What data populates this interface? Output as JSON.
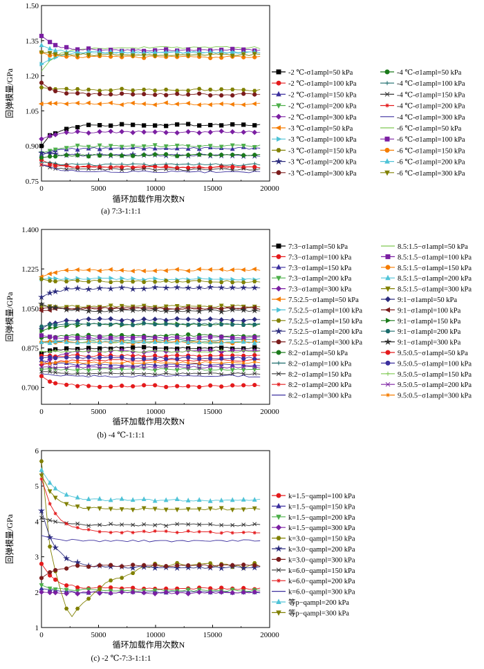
{
  "panels": [
    {
      "id": "a",
      "caption": "(a) 7:3-1:1:1",
      "xlabel": "循环加载作用次数N",
      "ylabel": "回弹模量/GPa",
      "xlim": [
        0,
        20000
      ],
      "ylim": [
        0.75,
        1.5
      ],
      "xticks": [
        "0",
        "5000",
        "10000",
        "15000",
        "20000"
      ],
      "yticks": [
        "0.75",
        "0.90",
        "1.05",
        "1.20",
        "1.35",
        "1.50"
      ],
      "legend": [
        {
          "label": "-2 ℃-σ1ampl=50 kPa",
          "color": "#000000",
          "marker": "square"
        },
        {
          "label": "-2 ℃-σ1ampl=100 kPa",
          "color": "#e41a1c",
          "marker": "circle"
        },
        {
          "label": "-2 ℃-σ1ampl=150 kPa",
          "color": "#3b2f9e",
          "marker": "triangle"
        },
        {
          "label": "-2 ℃-σ1ampl=200 kPa",
          "color": "#4daf4a",
          "marker": "triangle-down"
        },
        {
          "label": "-2 ℃-σ1ampl=300 kPa",
          "color": "#7b1fa2",
          "marker": "diamond"
        },
        {
          "label": "-3 ℃-σ1ampl=50 kPa",
          "color": "#f57c00",
          "marker": "triangle-left"
        },
        {
          "label": "-3 ℃-σ1ampl=100 kPa",
          "color": "#4fc3d7",
          "marker": "triangle-right"
        },
        {
          "label": "-3 ℃-σ1ampl=150 kPa",
          "color": "#808000",
          "marker": "hexagon"
        },
        {
          "label": "-3 ℃-σ1ampl=200 kPa",
          "color": "#2c2c7e",
          "marker": "star"
        },
        {
          "label": "-3 ℃-σ1ampl=300 kPa",
          "color": "#7b1c1c",
          "marker": "circle"
        },
        {
          "label": "-4 ℃-σ1ampl=50 kPa",
          "color": "#1b7a1b",
          "marker": "circle"
        },
        {
          "label": "-4 ℃-σ1ampl=100 kPa",
          "color": "#1a6b6b",
          "marker": "plus"
        },
        {
          "label": "-4 ℃-σ1ampl=150 kPa",
          "color": "#333333",
          "marker": "x"
        },
        {
          "label": "-4 ℃-σ1ampl=200 kPa",
          "color": "#e41a1c",
          "marker": "asterisk"
        },
        {
          "label": "-4 ℃-σ1ampl=300 kPa",
          "color": "#3b2f9e",
          "marker": "none"
        },
        {
          "label": "-6 ℃-σ1ampl=50 kPa",
          "color": "#7ec850",
          "marker": "none"
        },
        {
          "label": "-6 ℃-σ1ampl=100 kPa",
          "color": "#7b1fa2",
          "marker": "square"
        },
        {
          "label": "-6 ℃-σ1ampl=150 kPa",
          "color": "#f57c00",
          "marker": "circle"
        },
        {
          "label": "-6 ℃-σ1ampl=200 kPa",
          "color": "#4fc3d7",
          "marker": "triangle"
        },
        {
          "label": "-6 ℃-σ1ampl=300 kPa",
          "color": "#808000",
          "marker": "triangle-down"
        }
      ]
    },
    {
      "id": "b",
      "caption": "(b) -4 ℃-1:1:1",
      "xlabel": "循环加载作用次数N",
      "ylabel": "回弹模量/GPa",
      "xlim": [
        0,
        20000
      ],
      "ylim": [
        0.625,
        1.4
      ],
      "xticks": [
        "0",
        "5000",
        "10000",
        "15000",
        "20000"
      ],
      "yticks": [
        "0.700",
        "0.875",
        "1.050",
        "1.225",
        "1.400"
      ],
      "legend": [
        {
          "label": "7:3−σ1ampl=50 kPa",
          "color": "#000000",
          "marker": "square"
        },
        {
          "label": "7:3−σ1ampl=100 kPa",
          "color": "#e41a1c",
          "marker": "circle"
        },
        {
          "label": "7:3−σ1ampl=150 kPa",
          "color": "#3b2f9e",
          "marker": "triangle"
        },
        {
          "label": "7:3−σ1ampl=200 kPa",
          "color": "#4daf4a",
          "marker": "triangle-down"
        },
        {
          "label": "7:3−σ1ampl=300 kPa",
          "color": "#7b1fa2",
          "marker": "diamond"
        },
        {
          "label": "7.5:2.5−σ1ampl=50 kPa",
          "color": "#f57c00",
          "marker": "triangle-left"
        },
        {
          "label": "7.5:2.5−σ1ampl=100 kPa",
          "color": "#4fc3d7",
          "marker": "triangle-right"
        },
        {
          "label": "7.5:2.5−σ1ampl=150 kPa",
          "color": "#808000",
          "marker": "hexagon"
        },
        {
          "label": "7.5:2.5−σ1ampl=200 kPa",
          "color": "#2c2c7e",
          "marker": "star"
        },
        {
          "label": "7.5:2.5−σ1ampl=300 kPa",
          "color": "#7b1c1c",
          "marker": "circle"
        },
        {
          "label": "8:2−σ1ampl=50 kPa",
          "color": "#1b7a1b",
          "marker": "circle"
        },
        {
          "label": "8:2−σ1ampl=100 kPa",
          "color": "#1a6b6b",
          "marker": "plus"
        },
        {
          "label": "8:2−σ1ampl=150 kPa",
          "color": "#333333",
          "marker": "x"
        },
        {
          "label": "8:2−σ1ampl=200 kPa",
          "color": "#e41a1c",
          "marker": "asterisk"
        },
        {
          "label": "8:2−σ1ampl=300 kPa",
          "color": "#3b2f9e",
          "marker": "none"
        },
        {
          "label": "8.5:1.5−σ1ampl=50 kPa",
          "color": "#7ec850",
          "marker": "none"
        },
        {
          "label": "8.5:1.5−σ1ampl=100 kPa",
          "color": "#7b1fa2",
          "marker": "square"
        },
        {
          "label": "8.5:1.5−σ1ampl=150 kPa",
          "color": "#f57c00",
          "marker": "circle"
        },
        {
          "label": "8.5:1.5−σ1ampl=200 kPa",
          "color": "#4fc3d7",
          "marker": "triangle"
        },
        {
          "label": "8.5:1.5−σ1ampl=300 kPa",
          "color": "#808000",
          "marker": "triangle-down"
        },
        {
          "label": "9:1−σ1ampl=50 kPa",
          "color": "#2c2c7e",
          "marker": "diamond"
        },
        {
          "label": "9:1−σ1ampl=100 kPa",
          "color": "#7b1c1c",
          "marker": "triangle-left"
        },
        {
          "label": "9:1−σ1ampl=150 kPa",
          "color": "#1b7a1b",
          "marker": "triangle-right"
        },
        {
          "label": "9:1−σ1ampl=200 kPa",
          "color": "#1a6b6b",
          "marker": "hexagon"
        },
        {
          "label": "9:1−σ1ampl=300 kPa",
          "color": "#333333",
          "marker": "star"
        },
        {
          "label": "9.5:0.5−σ1ampl=50 kPa",
          "color": "#e41a1c",
          "marker": "circle"
        },
        {
          "label": "9.5:0.5−σ1ampl=100 kPa",
          "color": "#3b2f9e",
          "marker": "circle"
        },
        {
          "label": "9.5:0.5−σ1ampl=150 kPa",
          "color": "#7ec850",
          "marker": "plus"
        },
        {
          "label": "9.5:0.5−σ1ampl=200 kPa",
          "color": "#7b1fa2",
          "marker": "x"
        },
        {
          "label": "9.5:0.5−σ1ampl=300 kPa",
          "color": "#f57c00",
          "marker": "asterisk"
        }
      ]
    },
    {
      "id": "c",
      "caption": "(c) -2 ℃-7:3-1:1:1",
      "xlabel": "循环加载作用次数N",
      "ylabel": "回弹模量/GPa",
      "xlim": [
        0,
        20000
      ],
      "ylim": [
        1,
        6
      ],
      "xticks": [
        "0",
        "5000",
        "10000",
        "15000",
        "20000"
      ],
      "yticks": [
        "1",
        "2",
        "3",
        "4",
        "5",
        "6"
      ],
      "legend": [
        {
          "label": "k=1.5−qampl=100 kPa",
          "color": "#e41a1c",
          "marker": "circle"
        },
        {
          "label": "k=1.5−qampl=150 kPa",
          "color": "#3b2f9e",
          "marker": "triangle"
        },
        {
          "label": "k=1.5−qampl=200 kPa",
          "color": "#4daf4a",
          "marker": "triangle-down"
        },
        {
          "label": "k=1.5−qampl=300 kPa",
          "color": "#7b1fa2",
          "marker": "diamond"
        },
        {
          "label": "k=3.0−qampl=150 kPa",
          "color": "#808000",
          "marker": "hexagon"
        },
        {
          "label": "k=3.0−qampl=200 kPa",
          "color": "#2c2c7e",
          "marker": "star"
        },
        {
          "label": "k=3.0−qampl=300 kPa",
          "color": "#7b1c1c",
          "marker": "circle"
        },
        {
          "label": "k=6.0−qampl=150 kPa",
          "color": "#333333",
          "marker": "x"
        },
        {
          "label": "k=6.0−qampl=200 kPa",
          "color": "#e41a1c",
          "marker": "asterisk"
        },
        {
          "label": "k=6.0−qampl=300 kPa",
          "color": "#3b2f9e",
          "marker": "none"
        },
        {
          "label": "等p−qampl=200 kPa",
          "color": "#4fc3d7",
          "marker": "triangle"
        },
        {
          "label": "等p−qampl=300 kPa",
          "color": "#808000",
          "marker": "triangle-down"
        }
      ]
    }
  ],
  "chart_data": [
    {
      "type": "line",
      "title": "(a) 7:3-1:1:1",
      "xlabel": "循环加载作用次数N",
      "ylabel": "回弹模量/GPa",
      "xlim": [
        0,
        20000
      ],
      "ylim": [
        0.75,
        1.5
      ],
      "grid": false,
      "legend_position": "right",
      "series": [
        {
          "name": "-2 ℃-σ1ampl=50 kPa",
          "start": 0.9,
          "plateau": 0.99
        },
        {
          "name": "-2 ℃-σ1ampl=100 kPa",
          "start": 0.84,
          "plateau": 0.81
        },
        {
          "name": "-2 ℃-σ1ampl=150 kPa",
          "start": 0.86,
          "plateau": 0.89
        },
        {
          "name": "-2 ℃-σ1ampl=200 kPa",
          "start": 0.87,
          "plateau": 0.9
        },
        {
          "name": "-2 ℃-σ1ampl=300 kPa",
          "start": 0.93,
          "plateau": 0.96
        },
        {
          "name": "-3 ℃-σ1ampl=50 kPa",
          "start": 1.08,
          "plateau": 1.08
        },
        {
          "name": "-3 ℃-σ1ampl=100 kPa",
          "start": 1.25,
          "plateau": 1.3
        },
        {
          "name": "-3 ℃-σ1ampl=150 kPa",
          "start": 1.15,
          "plateau": 1.14
        },
        {
          "name": "-3 ℃-σ1ampl=200 kPa",
          "start": 0.87,
          "plateau": 0.86
        },
        {
          "name": "-3 ℃-σ1ampl=300 kPa",
          "start": 1.17,
          "plateau": 1.12
        },
        {
          "name": "-4 ℃-σ1ampl=50 kPa",
          "start": 0.85,
          "plateau": 0.86
        },
        {
          "name": "-4 ℃-σ1ampl=100 kPa",
          "start": 0.83,
          "plateau": 0.82
        },
        {
          "name": "-4 ℃-σ1ampl=150 kPa",
          "start": 0.82,
          "plateau": 0.8
        },
        {
          "name": "-4 ℃-σ1ampl=200 kPa",
          "start": 0.82,
          "plateau": 0.81
        },
        {
          "name": "-4 ℃-σ1ampl=300 kPa",
          "start": 0.82,
          "plateau": 0.79
        },
        {
          "name": "-6 ℃-σ1ampl=50 kPa",
          "start": 1.22,
          "plateau": 1.32
        },
        {
          "name": "-6 ℃-σ1ampl=100 kPa",
          "start": 1.37,
          "plateau": 1.31
        },
        {
          "name": "-6 ℃-σ1ampl=150 kPa",
          "start": 1.3,
          "plateau": 1.28
        },
        {
          "name": "-6 ℃-σ1ampl=200 kPa",
          "start": 1.33,
          "plateau": 1.3
        },
        {
          "name": "-6 ℃-σ1ampl=300 kPa",
          "start": 1.3,
          "plateau": 1.29
        }
      ]
    },
    {
      "type": "line",
      "title": "(b) -4 ℃-1:1:1",
      "xlabel": "循环加载作用次数N",
      "ylabel": "回弹模量/GPa",
      "xlim": [
        0,
        20000
      ],
      "ylim": [
        0.625,
        1.4
      ],
      "grid": false,
      "legend_position": "right",
      "series": [
        {
          "name": "7:3−σ1ampl=50 kPa",
          "start": 0.85,
          "plateau": 0.875
        },
        {
          "name": "7:3−σ1ampl=100 kPa",
          "start": 0.75,
          "plateau": 0.706
        },
        {
          "name": "7:3−σ1ampl=150 kPa",
          "start": 0.82,
          "plateau": 0.8
        },
        {
          "name": "7:3−σ1ampl=200 kPa",
          "start": 0.78,
          "plateau": 0.78
        },
        {
          "name": "7:3−σ1ampl=300 kPa",
          "start": 0.8,
          "plateau": 0.86
        },
        {
          "name": "7.5:2.5−σ1ampl=50 kPa",
          "start": 1.19,
          "plateau": 1.22
        },
        {
          "name": "7.5:2.5−σ1ampl=100 kPa",
          "start": 1.18,
          "plateau": 1.18
        },
        {
          "name": "7.5:2.5−σ1ampl=150 kPa",
          "start": 1.18,
          "plateau": 1.17
        },
        {
          "name": "7.5:2.5−σ1ampl=200 kPa",
          "start": 1.1,
          "plateau": 1.14
        },
        {
          "name": "7.5:2.5−σ1ampl=300 kPa",
          "start": 1.05,
          "plateau": 1.05
        },
        {
          "name": "8:2−σ1ampl=50 kPa",
          "start": 0.92,
          "plateau": 0.93
        },
        {
          "name": "8:2−σ1ampl=100 kPa",
          "start": 0.9,
          "plateau": 0.91
        },
        {
          "name": "8:2−σ1ampl=150 kPa",
          "start": 0.77,
          "plateau": 0.76
        },
        {
          "name": "8:2−σ1ampl=200 kPa",
          "start": 0.8,
          "plateau": 0.82
        },
        {
          "name": "8:2−σ1ampl=300 kPa",
          "start": 0.76,
          "plateau": 0.75
        },
        {
          "name": "8.5:1.5−σ1ampl=50 kPa",
          "start": 0.9,
          "plateau": 0.9
        },
        {
          "name": "8.5:1.5−σ1ampl=100 kPa",
          "start": 0.93,
          "plateau": 0.92
        },
        {
          "name": "8.5:1.5−σ1ampl=150 kPa",
          "start": 0.9,
          "plateau": 0.9
        },
        {
          "name": "8.5:1.5−σ1ampl=200 kPa",
          "start": 0.9,
          "plateau": 0.9
        },
        {
          "name": "8.5:1.5−σ1ampl=300 kPa",
          "start": 1.06,
          "plateau": 1.06
        },
        {
          "name": "9:1−σ1ampl=50 kPa",
          "start": 0.96,
          "plateau": 1.0
        },
        {
          "name": "9:1−σ1ampl=100 kPa",
          "start": 1.04,
          "plateau": 1.05
        },
        {
          "name": "9:1−σ1ampl=150 kPa",
          "start": 0.95,
          "plateau": 0.98
        },
        {
          "name": "9:1−σ1ampl=200 kPa",
          "start": 0.97,
          "plateau": 0.98
        },
        {
          "name": "9:1−σ1ampl=300 kPa",
          "start": 1.07,
          "plateau": 1.04
        },
        {
          "name": "9.5:0.5−σ1ampl=50 kPa",
          "start": 0.84,
          "plateau": 0.84
        },
        {
          "name": "9.5:0.5−σ1ampl=100 kPa",
          "start": 0.83,
          "plateau": 0.83
        },
        {
          "name": "9.5:0.5−σ1ampl=150 kPa",
          "start": 0.86,
          "plateau": 0.86
        },
        {
          "name": "9.5:0.5−σ1ampl=200 kPa",
          "start": 0.79,
          "plateau": 0.79
        },
        {
          "name": "9.5:0.5−σ1ampl=300 kPa",
          "start": 0.81,
          "plateau": 0.81
        }
      ]
    },
    {
      "type": "line",
      "title": "(c) -2 ℃-7:3-1:1:1",
      "xlabel": "循环加载作用次数N",
      "ylabel": "回弹模量/GPa",
      "xlim": [
        0,
        20000
      ],
      "ylim": [
        1,
        6
      ],
      "grid": false,
      "legend_position": "right",
      "series": [
        {
          "name": "k=1.5−qampl=100 kPa",
          "start": 2.8,
          "plateau": 2.1
        },
        {
          "name": "k=1.5−qampl=150 kPa",
          "start": 2.1,
          "plateau": 2.0
        },
        {
          "name": "k=1.5−qampl=200 kPa",
          "start": 2.2,
          "plateau": 2.05
        },
        {
          "name": "k=1.5−qampl=300 kPa",
          "start": 2.0,
          "plateau": 1.98
        },
        {
          "name": "k=3.0−qampl=150 kPa",
          "start": 5.7,
          "plateau": 2.75,
          "dip": 1.25,
          "dip_x": 2500
        },
        {
          "name": "k=3.0−qampl=200 kPa",
          "start": 4.3,
          "plateau": 2.7
        },
        {
          "name": "k=3.0−qampl=300 kPa",
          "start": 2.4,
          "plateau": 2.75
        },
        {
          "name": "k=6.0−qampl=150 kPa",
          "start": 4.1,
          "plateau": 3.9
        },
        {
          "name": "k=6.0−qampl=200 kPa",
          "start": 5.2,
          "plateau": 3.7
        },
        {
          "name": "k=6.0−qampl=300 kPa",
          "start": 3.6,
          "plateau": 3.45
        },
        {
          "name": "等p−qampl=200 kPa",
          "start": 5.45,
          "plateau": 4.6
        },
        {
          "name": "等p−qampl=300 kPa",
          "start": 5.3,
          "plateau": 4.35
        }
      ]
    }
  ]
}
